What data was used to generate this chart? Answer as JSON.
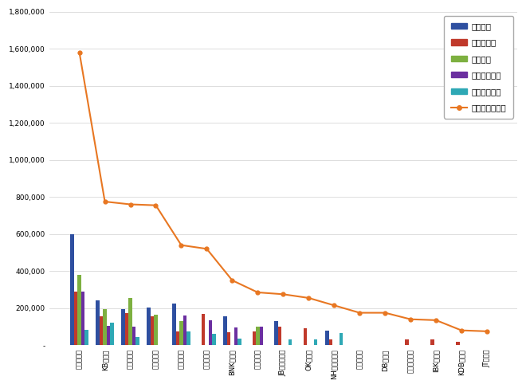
{
  "categories": [
    "현대캐피탈",
    "KB캐피탈",
    "아주캐피탈",
    "하나캐피탈",
    "롯데캐피탈",
    "한국캐피탈",
    "BNK캐피탈",
    "신한캐피탈",
    "JB우리캐피탈",
    "OK캐피탈",
    "NH농협캐피탈",
    "호성캐피탈",
    "DB캐피탈",
    "애큐온캐피탈",
    "IBK캐피탈",
    "KDB캐피탈",
    "JT캐피탈"
  ],
  "참여지수": [
    600000,
    240000,
    195000,
    205000,
    225000,
    0,
    155000,
    0,
    130000,
    0,
    80000,
    0,
    0,
    0,
    0,
    0,
    0
  ],
  "미디어지수": [
    290000,
    155000,
    175000,
    155000,
    75000,
    170000,
    70000,
    75000,
    100000,
    90000,
    30000,
    0,
    0,
    30000,
    30000,
    20000,
    0
  ],
  "소통지수": [
    380000,
    195000,
    255000,
    165000,
    130000,
    0,
    0,
    100000,
    0,
    0,
    0,
    0,
    0,
    0,
    0,
    0,
    0
  ],
  "커뮤니티지수": [
    290000,
    105000,
    100000,
    0,
    160000,
    135000,
    95000,
    100000,
    0,
    0,
    0,
    0,
    0,
    0,
    0,
    0,
    0
  ],
  "사회공헌지수": [
    85000,
    120000,
    45000,
    0,
    75000,
    60000,
    35000,
    0,
    30000,
    30000,
    65000,
    0,
    0,
    0,
    0,
    0,
    0
  ],
  "브랜드평판지수": [
    1580000,
    775000,
    760000,
    755000,
    540000,
    520000,
    350000,
    285000,
    275000,
    255000,
    215000,
    175000,
    175000,
    140000,
    135000,
    80000,
    75000
  ],
  "bar_colors": {
    "참여지수": "#2E4FA0",
    "미디어지수": "#C0392B",
    "소통지수": "#7DB040",
    "커뮤니티지수": "#6B2FA0",
    "사회공헌지수": "#2EA8B5"
  },
  "line_color": "#E87722",
  "ylim": [
    0,
    1800000
  ],
  "yticks": [
    0,
    200000,
    400000,
    600000,
    800000,
    1000000,
    1200000,
    1400000,
    1600000,
    1800000
  ],
  "legend_labels": [
    "참여지수",
    "미디어지수",
    "소통지수",
    "커뮤니티지수",
    "사회공헌지수",
    "브랜드평판지수"
  ],
  "bg_color": "#FFFFFF",
  "grid_color": "#D0D0D0"
}
